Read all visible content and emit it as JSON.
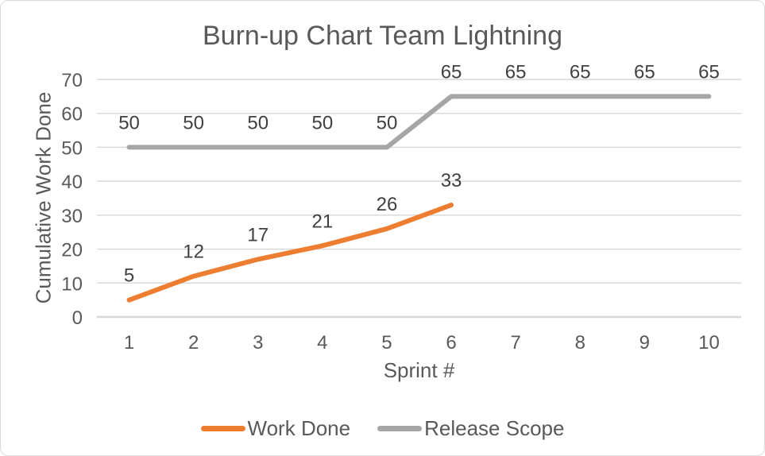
{
  "chart": {
    "title": "Burn-up Chart Team Lightning",
    "y_axis_title": "Cumulative Work Done",
    "x_axis_title": "Sprint #"
  },
  "legend": {
    "items": [
      {
        "label": "Work Done",
        "color": "#ED7D31"
      },
      {
        "label": "Release Scope",
        "color": "#A6A6A6"
      }
    ]
  },
  "chart_data": {
    "type": "line",
    "title": "Burn-up Chart Team Lightning",
    "xlabel": "Sprint #",
    "ylabel": "Cumulative Work Done",
    "categories": [
      1,
      2,
      3,
      4,
      5,
      6,
      7,
      8,
      9,
      10
    ],
    "series": [
      {
        "name": "Work Done",
        "color": "#ED7D31",
        "values": [
          5,
          12,
          17,
          21,
          26,
          33,
          null,
          null,
          null,
          null
        ]
      },
      {
        "name": "Release Scope",
        "color": "#A6A6A6",
        "values": [
          50,
          50,
          50,
          50,
          50,
          65,
          65,
          65,
          65,
          65
        ]
      }
    ],
    "ylim": [
      0,
      70
    ],
    "y_ticks": [
      0,
      10,
      20,
      30,
      40,
      50,
      60,
      70
    ],
    "grid": "horizontal-only",
    "data_labels": "above-points",
    "legend_position": "bottom"
  },
  "colors": {
    "text": "#595959",
    "data_label": "#404040",
    "gridline": "#D9D9D9",
    "axis_line": "#D6D6D6",
    "border": "#D9D9D9",
    "background": "#FFFFFF"
  }
}
